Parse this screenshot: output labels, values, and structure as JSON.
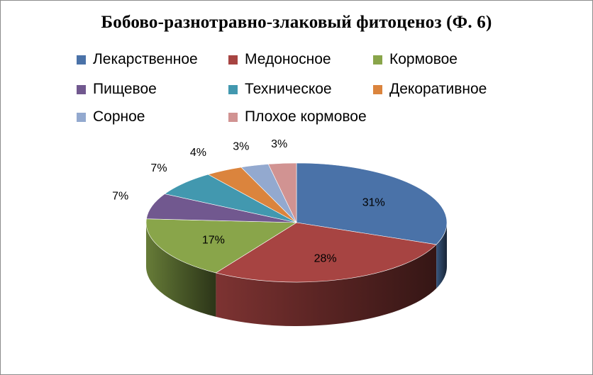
{
  "chart_data": {
    "type": "pie",
    "title": "Бобово-разнотравно-злаковый  фитоценоз (Ф. 6)",
    "legend_position": "top",
    "slices": [
      {
        "name": "Лекарственное",
        "value": 31,
        "label": "31%",
        "color": "#4a72a8"
      },
      {
        "name": "Медоносное",
        "value": 28,
        "label": "28%",
        "color": "#a74442"
      },
      {
        "name": "Кормовое",
        "value": 17,
        "label": "17%",
        "color": "#89a54a"
      },
      {
        "name": "Пищевое",
        "value": 7,
        "label": "7%",
        "color": "#71588f"
      },
      {
        "name": "Техническое",
        "value": 7,
        "label": "7%",
        "color": "#4298af"
      },
      {
        "name": "Декоративное",
        "value": 4,
        "label": "4%",
        "color": "#db843d"
      },
      {
        "name": "Сорное",
        "value": 3,
        "label": "3%",
        "color": "#93a9cf"
      },
      {
        "name": "Плохое кормовое",
        "value": 3,
        "label": "3%",
        "color": "#d19392"
      }
    ]
  }
}
